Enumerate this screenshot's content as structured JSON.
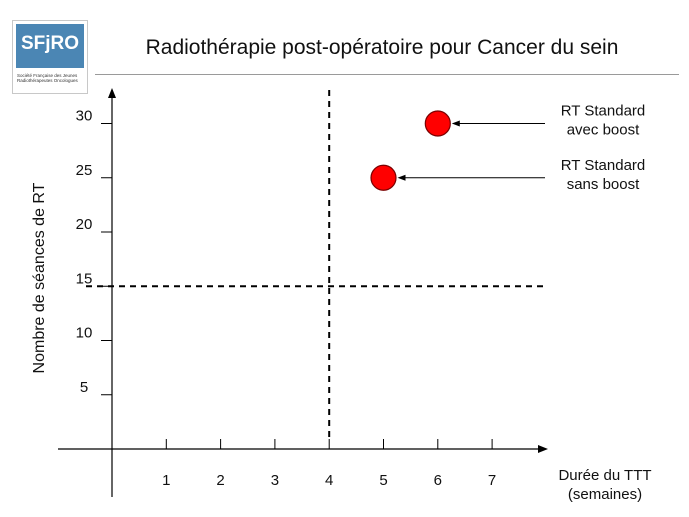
{
  "logo": {
    "text": "SFjRO",
    "subtitle": "Société Française des Jeunes Radiothérapeutes Oncologues"
  },
  "title": "Radiothérapie post-opératoire pour Cancer du sein",
  "colors": {
    "marker": "#ff0000",
    "marker_edge": "#7a0000",
    "axis": "#000000",
    "logo_band": "#4b86b4"
  },
  "chart_data": {
    "type": "scatter",
    "xlabel": "Durée du TTT\n(semaines)",
    "ylabel": "Nombre de séances de RT",
    "x_ticks": [
      1,
      2,
      3,
      4,
      5,
      6,
      7
    ],
    "y_ticks": [
      5,
      10,
      15,
      20,
      25,
      30
    ],
    "xlim": [
      0,
      8
    ],
    "ylim": [
      0,
      33
    ],
    "grid": false,
    "reference_lines": [
      {
        "axis": "x",
        "value": 4,
        "style": "dashed"
      },
      {
        "axis": "y",
        "value": 15,
        "style": "dashed"
      }
    ],
    "points": [
      {
        "x": 6,
        "y": 30,
        "label": "RT Standard\navec boost"
      },
      {
        "x": 5,
        "y": 25,
        "label": "RT Standard\nsans boost"
      }
    ]
  }
}
